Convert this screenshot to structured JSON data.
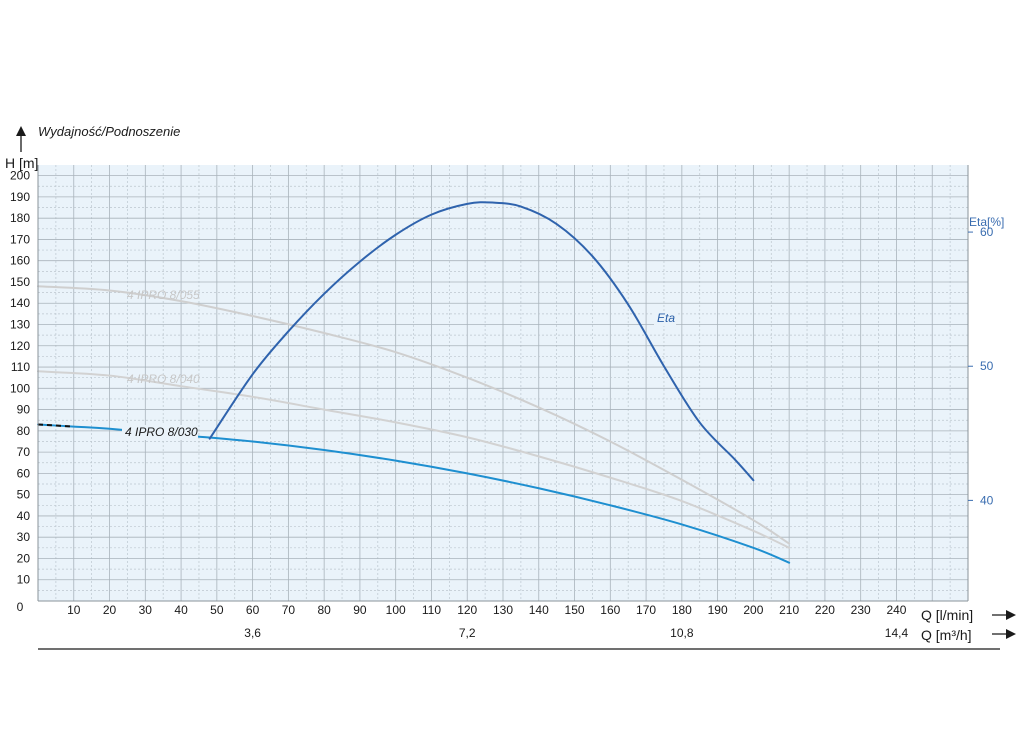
{
  "chart_data": {
    "type": "line",
    "title": "Wydajność/Podnoszenie",
    "y_label": "H [m]",
    "y2_label": "Eta[%]",
    "x_label": "Q [l/min]",
    "x2_label": "Q [m³/h]",
    "xlim": [
      0,
      260
    ],
    "ylim": [
      0,
      205
    ],
    "y2lim": [
      32.5,
      65
    ],
    "x_ticks": [
      0,
      10,
      20,
      30,
      40,
      50,
      60,
      70,
      80,
      90,
      100,
      110,
      120,
      130,
      140,
      150,
      160,
      170,
      180,
      190,
      200,
      210,
      220,
      230,
      240
    ],
    "x_tick_labels": [
      "10",
      "20",
      "30",
      "40",
      "50",
      "60",
      "70",
      "80",
      "90",
      "100",
      "110",
      "120",
      "130",
      "140",
      "150",
      "160",
      "170",
      "180",
      "190",
      "200",
      "210",
      "220",
      "230",
      "240"
    ],
    "origin_label": "0",
    "y_ticks": [
      10,
      20,
      30,
      40,
      50,
      60,
      70,
      80,
      90,
      100,
      110,
      120,
      130,
      140,
      150,
      160,
      170,
      180,
      190,
      200
    ],
    "y_tick_labels": [
      "10",
      "20",
      "30",
      "40",
      "50",
      "60",
      "70",
      "80",
      "90",
      "100",
      "110",
      "120",
      "130",
      "140",
      "150",
      "160",
      "170",
      "180",
      "190",
      "200"
    ],
    "y2_ticks": [
      40,
      50,
      60
    ],
    "y2_tick_labels": [
      "40",
      "50",
      "60"
    ],
    "x2_ticks": [
      60,
      120,
      180,
      240
    ],
    "x2_tick_labels": [
      "3,6",
      "7,2",
      "10,8",
      "14,4"
    ],
    "grid": true,
    "series": [
      {
        "name": "4 IPRO 8/055",
        "color": "#cfcfcf",
        "x": [
          0,
          20,
          40,
          60,
          80,
          100,
          120,
          140,
          160,
          180,
          200,
          210
        ],
        "y": [
          148,
          146,
          141,
          134,
          126,
          117,
          105,
          91,
          75,
          57,
          38,
          27
        ]
      },
      {
        "name": "4 IPRO 8/040",
        "color": "#d2d2d2",
        "x": [
          0,
          20,
          40,
          60,
          80,
          100,
          120,
          140,
          160,
          180,
          200,
          210
        ],
        "y": [
          108,
          106,
          101,
          96,
          90,
          84,
          77,
          68,
          58,
          47,
          33,
          25
        ]
      },
      {
        "name": "4 IPRO 8/030",
        "color": "#1e8fd0",
        "x": [
          0,
          10,
          20,
          40,
          60,
          80,
          100,
          120,
          140,
          160,
          180,
          200,
          210
        ],
        "y": [
          83,
          82,
          81,
          78,
          75,
          71,
          66,
          60,
          53,
          45,
          36,
          25,
          18
        ]
      },
      {
        "name": "Eta",
        "axis": "y2",
        "color": "#2f63ad",
        "x": [
          48,
          60,
          70,
          80,
          90,
          100,
          110,
          120,
          127,
          135,
          145,
          155,
          165,
          175,
          185,
          195,
          200
        ],
        "y": [
          44.6,
          49.4,
          52.6,
          55.4,
          57.8,
          59.8,
          61.3,
          62.1,
          62.2,
          61.9,
          60.6,
          58.2,
          54.6,
          50.0,
          45.8,
          43.0,
          41.5
        ]
      }
    ],
    "dashed_segment": {
      "x": [
        0,
        10
      ],
      "y": [
        83,
        82
      ]
    }
  }
}
